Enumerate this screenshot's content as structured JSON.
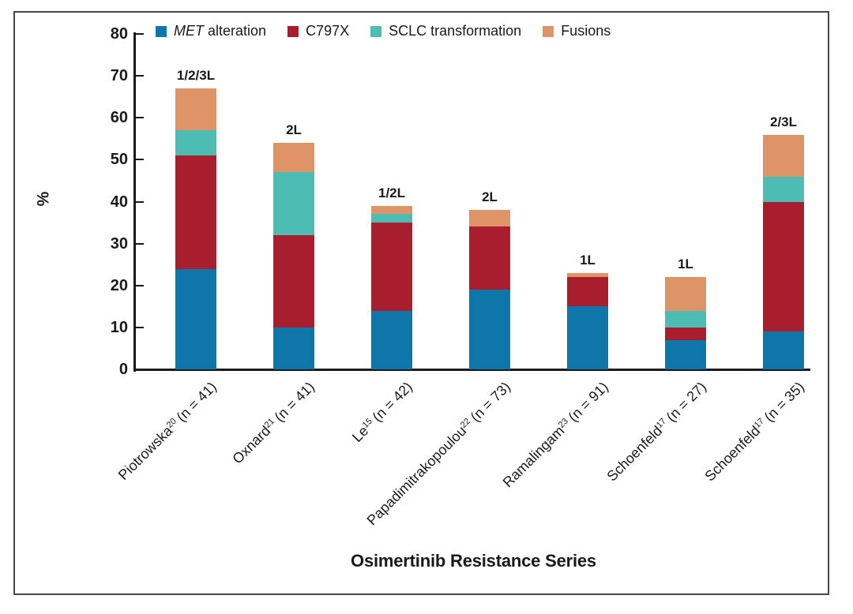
{
  "chart_data": {
    "type": "bar",
    "stacked": true,
    "xlabel": "Osimertinib Resistance Series",
    "ylabel": "%",
    "ylim": [
      0,
      80
    ],
    "y_ticks": [
      0,
      10,
      20,
      30,
      40,
      50,
      60,
      70,
      80
    ],
    "grid": false,
    "legend_position": "top",
    "categories": [
      {
        "name": "Piotrowska",
        "ref": "20",
        "n_label": "(n = 41)",
        "annotation": "1/2/3L"
      },
      {
        "name": "Oxnard",
        "ref": "21",
        "n_label": "(n = 41)",
        "annotation": "2L"
      },
      {
        "name": "Le",
        "ref": "15",
        "n_label": "(n = 42)",
        "annotation": "1/2L"
      },
      {
        "name": "Papadimitrakopoulou",
        "ref": "22",
        "n_label": "(n = 73)",
        "annotation": "2L"
      },
      {
        "name": "Ramalingam",
        "ref": "23",
        "n_label": "(n = 91)",
        "annotation": "1L"
      },
      {
        "name": "Schoenfeld",
        "ref": "17",
        "n_label": "(n = 27)",
        "annotation": "1L"
      },
      {
        "name": "Schoenfeld",
        "ref": "17",
        "n_label": "(n = 35)",
        "annotation": "2/3L"
      }
    ],
    "series": [
      {
        "name": "MET alteration",
        "label_italic": "MET",
        "label_rest": " alteration",
        "color": "#0E76A8",
        "values": [
          24,
          10,
          14,
          19,
          15,
          7,
          9
        ]
      },
      {
        "name": "C797X",
        "label": "C797X",
        "color": "#A91E2F",
        "values": [
          27,
          22,
          21,
          15,
          7,
          3,
          31
        ]
      },
      {
        "name": "SCLC transformation",
        "label": "SCLC transformation",
        "color": "#4DBCB2",
        "values": [
          6,
          15,
          2,
          0,
          0,
          4,
          6
        ]
      },
      {
        "name": "Fusions",
        "label": "Fusions",
        "color": "#DE9467",
        "values": [
          10,
          7,
          2,
          4,
          1,
          8,
          10
        ]
      }
    ],
    "totals": [
      67,
      54,
      39,
      38,
      23,
      22,
      56
    ]
  }
}
